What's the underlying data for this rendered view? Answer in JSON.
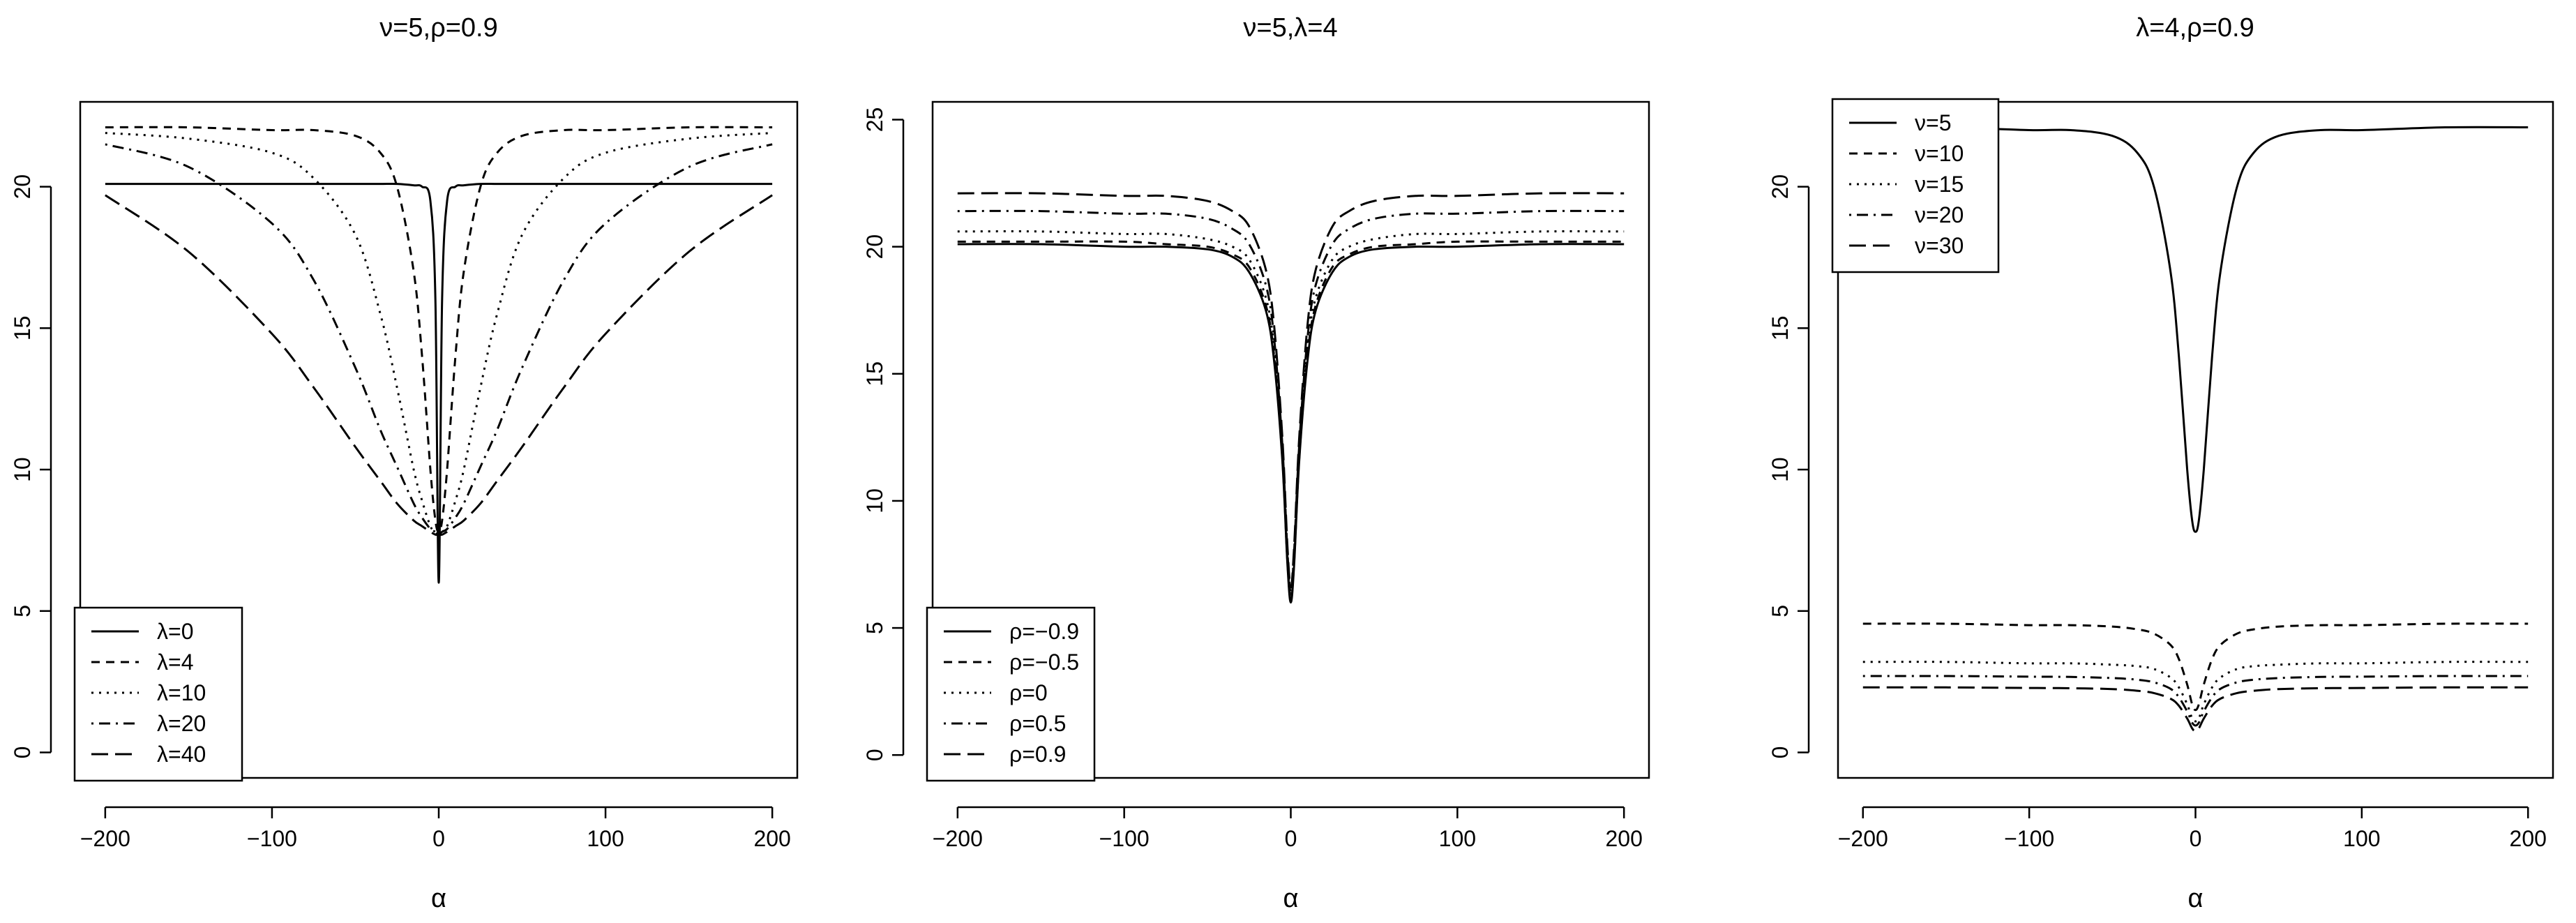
{
  "chart_data": [
    {
      "type": "line",
      "title": "ν=5,ρ=0.9",
      "xlabel": "α",
      "ylabel": "",
      "xlim": [
        -215,
        215
      ],
      "ylim": [
        -0.9,
        23
      ],
      "xticks": [
        -200,
        -100,
        0,
        100,
        200
      ],
      "yticks": [
        0,
        5,
        10,
        15,
        20
      ],
      "xtick_labels": [
        "−200",
        "−100",
        "0",
        "100",
        "200"
      ],
      "ytick_labels": [
        "0",
        "5",
        "10",
        "15",
        "20"
      ],
      "legend": "bottom-left",
      "grid": false,
      "x": [
        -200,
        -150,
        -100,
        -75,
        -50,
        -35,
        -25,
        -15,
        -10,
        -5,
        -2,
        0,
        2,
        5,
        10,
        15,
        25,
        35,
        50,
        75,
        100,
        150,
        200
      ],
      "series": [
        {
          "name": "λ=0",
          "dash": "solid",
          "values": [
            20.1,
            20.1,
            20.1,
            20.1,
            20.1,
            20.1,
            20.1,
            20.05,
            20.0,
            19.5,
            16.0,
            6.0,
            16.0,
            19.5,
            20.0,
            20.05,
            20.1,
            20.1,
            20.1,
            20.1,
            20.1,
            20.1,
            20.1
          ]
        },
        {
          "name": "λ=4",
          "dash": "short",
          "values": [
            22.1,
            22.1,
            22.0,
            22.0,
            21.8,
            21.2,
            20.0,
            17.0,
            14.0,
            10.0,
            8.2,
            7.8,
            8.2,
            10.0,
            14.0,
            17.0,
            20.0,
            21.2,
            21.8,
            22.0,
            22.0,
            22.1,
            22.1
          ]
        },
        {
          "name": "λ=10",
          "dash": "dotted",
          "values": [
            21.9,
            21.7,
            21.2,
            20.3,
            18.3,
            15.5,
            12.9,
            10.0,
            8.9,
            8.0,
            7.8,
            7.7,
            7.8,
            8.0,
            8.9,
            10.0,
            12.9,
            15.5,
            18.3,
            20.3,
            21.2,
            21.7,
            21.9
          ]
        },
        {
          "name": "λ=20",
          "dash": "dotdash",
          "values": [
            21.5,
            20.7,
            18.7,
            16.7,
            13.6,
            11.4,
            10.1,
            8.8,
            8.3,
            7.9,
            7.8,
            7.7,
            7.8,
            7.9,
            8.3,
            8.8,
            10.1,
            11.4,
            13.6,
            16.7,
            18.7,
            20.7,
            21.5
          ]
        },
        {
          "name": "λ=40",
          "dash": "longdash",
          "values": [
            19.7,
            17.7,
            14.8,
            12.9,
            10.8,
            9.6,
            8.8,
            8.2,
            8.0,
            7.8,
            7.7,
            7.7,
            7.7,
            7.8,
            8.0,
            8.2,
            8.8,
            9.6,
            10.8,
            12.9,
            14.8,
            17.7,
            19.7
          ]
        }
      ]
    },
    {
      "type": "line",
      "title": "ν=5,λ=4",
      "xlabel": "α",
      "ylabel": "",
      "xlim": [
        -215,
        215
      ],
      "ylim": [
        -0.9,
        25.7
      ],
      "xticks": [
        -200,
        -100,
        0,
        100,
        200
      ],
      "yticks": [
        0,
        5,
        10,
        15,
        20,
        25
      ],
      "xtick_labels": [
        "−200",
        "−100",
        "0",
        "100",
        "200"
      ],
      "ytick_labels": [
        "0",
        "5",
        "10",
        "15",
        "20",
        "25"
      ],
      "legend": "bottom-left",
      "grid": false,
      "x": [
        -200,
        -150,
        -100,
        -75,
        -50,
        -35,
        -25,
        -15,
        -10,
        -5,
        -2,
        0,
        2,
        5,
        10,
        15,
        25,
        35,
        50,
        75,
        100,
        150,
        200
      ],
      "series": [
        {
          "name": "ρ=−0.9",
          "dash": "solid",
          "values": [
            20.1,
            20.1,
            20.0,
            20.0,
            19.9,
            19.6,
            19.0,
            17.5,
            15.5,
            11.5,
            7.5,
            6.0,
            7.5,
            11.5,
            15.5,
            17.5,
            19.0,
            19.6,
            19.9,
            20.0,
            20.0,
            20.1,
            20.1
          ]
        },
        {
          "name": "ρ=−0.5",
          "dash": "short",
          "values": [
            20.2,
            20.2,
            20.2,
            20.1,
            20.0,
            19.7,
            19.2,
            17.7,
            15.7,
            11.6,
            7.6,
            6.1,
            7.6,
            11.6,
            15.7,
            17.7,
            19.2,
            19.7,
            20.0,
            20.1,
            20.2,
            20.2,
            20.2
          ]
        },
        {
          "name": "ρ=0",
          "dash": "dotted",
          "values": [
            20.6,
            20.6,
            20.5,
            20.5,
            20.3,
            20.0,
            19.5,
            18.0,
            16.0,
            11.8,
            7.8,
            6.2,
            7.8,
            11.8,
            16.0,
            18.0,
            19.5,
            20.0,
            20.3,
            20.5,
            20.5,
            20.6,
            20.6
          ]
        },
        {
          "name": "ρ=0.5",
          "dash": "dotdash",
          "values": [
            21.4,
            21.4,
            21.3,
            21.3,
            21.1,
            20.7,
            20.1,
            18.5,
            16.4,
            12.1,
            8.0,
            6.4,
            8.0,
            12.1,
            16.4,
            18.5,
            20.1,
            20.7,
            21.1,
            21.3,
            21.3,
            21.4,
            21.4
          ]
        },
        {
          "name": "ρ=0.9",
          "dash": "longdash",
          "values": [
            22.1,
            22.1,
            22.0,
            22.0,
            21.8,
            21.4,
            20.8,
            19.1,
            16.9,
            12.4,
            8.2,
            6.6,
            8.2,
            12.4,
            16.9,
            19.1,
            20.8,
            21.4,
            21.8,
            22.0,
            22.0,
            22.1,
            22.1
          ]
        }
      ]
    },
    {
      "type": "line",
      "title": "λ=4,ρ=0.9",
      "xlabel": "α",
      "ylabel": "",
      "xlim": [
        -215,
        215
      ],
      "ylim": [
        -0.9,
        23
      ],
      "xticks": [
        -200,
        -100,
        0,
        100,
        200
      ],
      "yticks": [
        0,
        5,
        10,
        15,
        20
      ],
      "xtick_labels": [
        "−200",
        "−100",
        "0",
        "100",
        "200"
      ],
      "ytick_labels": [
        "0",
        "5",
        "10",
        "15",
        "20"
      ],
      "legend": "top-left",
      "grid": false,
      "x": [
        -200,
        -150,
        -100,
        -75,
        -50,
        -35,
        -25,
        -15,
        -10,
        -5,
        -2,
        0,
        2,
        5,
        10,
        15,
        25,
        35,
        50,
        75,
        100,
        150,
        200
      ],
      "series": [
        {
          "name": "ν=5",
          "dash": "solid",
          "values": [
            22.1,
            22.1,
            22.0,
            22.0,
            21.8,
            21.2,
            20.0,
            17.0,
            14.0,
            10.0,
            8.2,
            7.8,
            8.2,
            10.0,
            14.0,
            17.0,
            20.0,
            21.2,
            21.8,
            22.0,
            22.0,
            22.1,
            22.1
          ]
        },
        {
          "name": "ν=10",
          "dash": "short",
          "values": [
            4.55,
            4.55,
            4.5,
            4.5,
            4.45,
            4.35,
            4.2,
            3.8,
            3.3,
            2.4,
            1.7,
            1.5,
            1.7,
            2.4,
            3.3,
            3.8,
            4.2,
            4.35,
            4.45,
            4.5,
            4.5,
            4.55,
            4.55
          ]
        },
        {
          "name": "ν=15",
          "dash": "dotted",
          "values": [
            3.2,
            3.2,
            3.15,
            3.15,
            3.1,
            3.05,
            2.95,
            2.65,
            2.3,
            1.7,
            1.2,
            1.1,
            1.2,
            1.7,
            2.3,
            2.65,
            2.95,
            3.05,
            3.1,
            3.15,
            3.15,
            3.2,
            3.2
          ]
        },
        {
          "name": "ν=20",
          "dash": "dotdash",
          "values": [
            2.7,
            2.7,
            2.68,
            2.67,
            2.63,
            2.57,
            2.48,
            2.25,
            1.95,
            1.45,
            1.05,
            0.95,
            1.05,
            1.45,
            1.95,
            2.25,
            2.48,
            2.57,
            2.63,
            2.67,
            2.68,
            2.7,
            2.7
          ]
        },
        {
          "name": "ν=30",
          "dash": "longdash",
          "values": [
            2.3,
            2.3,
            2.28,
            2.27,
            2.24,
            2.18,
            2.1,
            1.9,
            1.65,
            1.2,
            0.85,
            0.75,
            0.85,
            1.2,
            1.65,
            1.9,
            2.1,
            2.18,
            2.24,
            2.27,
            2.28,
            2.3,
            2.3
          ]
        }
      ]
    }
  ]
}
